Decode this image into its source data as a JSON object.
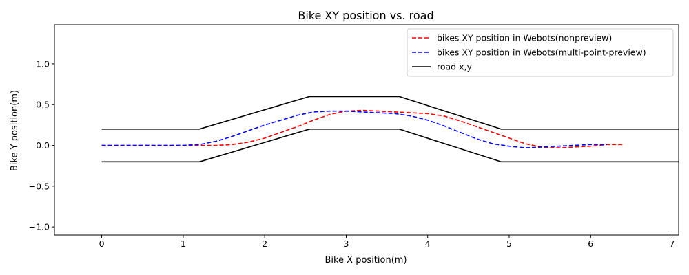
{
  "chart_data": {
    "type": "line",
    "title": "Bike XY position vs. road",
    "xlabel": "Bike X position(m)",
    "ylabel": "Bike Y position(m)",
    "xlim": [
      -0.58,
      7.08
    ],
    "ylim": [
      -1.1,
      1.48
    ],
    "xticks": [
      0,
      1,
      2,
      3,
      4,
      5,
      6,
      7
    ],
    "yticks": [
      -1.0,
      -0.5,
      0.0,
      0.5,
      1.0
    ],
    "xtick_labels": [
      "0",
      "1",
      "2",
      "3",
      "4",
      "5",
      "6",
      "7"
    ],
    "ytick_labels": [
      "−1.0",
      "−0.5",
      "0.0",
      "0.5",
      "1.0"
    ],
    "grid": false,
    "legend_position": "upper right",
    "series": [
      {
        "name": "bikes XY position in Webots(nonpreview)",
        "color": "#ff0000",
        "style": "dashed",
        "x": [
          0,
          0.5,
          1.0,
          1.2,
          1.4,
          1.6,
          1.8,
          2.0,
          2.2,
          2.4,
          2.6,
          2.8,
          3.0,
          3.2,
          3.4,
          3.6,
          3.8,
          4.0,
          4.2,
          4.4,
          4.6,
          4.8,
          5.0,
          5.2,
          5.4,
          5.6,
          5.8,
          6.0,
          6.2,
          6.4
        ],
        "y": [
          0,
          0,
          0,
          0,
          0,
          0.01,
          0.04,
          0.09,
          0.16,
          0.23,
          0.31,
          0.38,
          0.42,
          0.43,
          0.42,
          0.41,
          0.4,
          0.39,
          0.36,
          0.3,
          0.23,
          0.16,
          0.09,
          0.02,
          -0.02,
          -0.03,
          -0.02,
          -0.01,
          0.01,
          0.01
        ]
      },
      {
        "name": "bikes XY position in Webots(multi-point-preview)",
        "color": "#0000ff",
        "style": "dashed",
        "x": [
          0,
          0.5,
          1.0,
          1.2,
          1.4,
          1.6,
          1.8,
          2.0,
          2.2,
          2.4,
          2.6,
          2.8,
          3.0,
          3.2,
          3.4,
          3.6,
          3.8,
          4.0,
          4.2,
          4.4,
          4.6,
          4.8,
          5.0,
          5.2,
          5.4,
          5.6,
          5.8,
          6.0,
          6.2
        ],
        "y": [
          0,
          0,
          0,
          0.01,
          0.05,
          0.11,
          0.18,
          0.25,
          0.31,
          0.37,
          0.41,
          0.42,
          0.42,
          0.41,
          0.4,
          0.39,
          0.36,
          0.31,
          0.24,
          0.16,
          0.08,
          0.02,
          -0.01,
          -0.03,
          -0.02,
          -0.01,
          0,
          0.01,
          0.01
        ]
      },
      {
        "name": "road x,y",
        "color": "#000000",
        "style": "solid",
        "segments": [
          {
            "x": [
              0,
              1.2,
              2.55,
              3.65,
              4.9,
              7.08
            ],
            "y": [
              0.2,
              0.2,
              0.6,
              0.6,
              0.2,
              0.2
            ]
          },
          {
            "x": [
              0,
              1.2,
              2.55,
              3.65,
              4.9,
              7.08
            ],
            "y": [
              -0.2,
              -0.2,
              0.2,
              0.2,
              -0.2,
              -0.2
            ]
          }
        ]
      }
    ]
  }
}
